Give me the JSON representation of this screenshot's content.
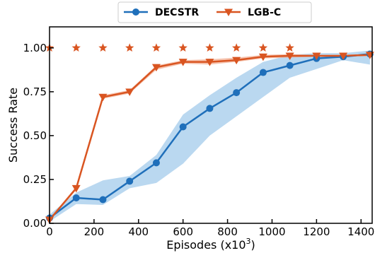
{
  "chart_data": {
    "type": "line",
    "xlabel": "Episodes (x10",
    "xlabel_sup": "3",
    "xlabel_close": ")",
    "ylabel": "Success Rate",
    "xlim": [
      0,
      1450
    ],
    "ylim": [
      0,
      1.12
    ],
    "xticks": [
      0,
      200,
      400,
      600,
      800,
      1000,
      1200,
      1400
    ],
    "yticks": [
      0.0,
      0.25,
      0.5,
      0.75,
      1.0
    ],
    "ytick_labels": [
      "0.00",
      "0.25",
      "0.50",
      "0.75",
      "1.00"
    ],
    "grid": false,
    "legend_position": "top-center",
    "series": [
      {
        "name": "DECSTR",
        "color": "#1f6fba",
        "band_color": "#9cc8ea",
        "marker": "circle",
        "x": [
          0,
          120,
          240,
          360,
          480,
          600,
          720,
          840,
          960,
          1080,
          1200,
          1320,
          1440
        ],
        "y": [
          0.03,
          0.145,
          0.135,
          0.24,
          0.345,
          0.55,
          0.655,
          0.745,
          0.86,
          0.9,
          0.94,
          0.95,
          0.965
        ],
        "upper": [
          0.05,
          0.175,
          0.245,
          0.27,
          0.39,
          0.62,
          0.73,
          0.83,
          0.92,
          0.96,
          0.97,
          0.97,
          0.985
        ],
        "lower": [
          0.01,
          0.11,
          0.105,
          0.2,
          0.23,
          0.34,
          0.5,
          0.61,
          0.72,
          0.83,
          0.88,
          0.93,
          0.905
        ]
      },
      {
        "name": "LGB-C",
        "color": "#d95521",
        "band_color": "#f2a98c",
        "marker": "triangle-down",
        "x": [
          0,
          120,
          240,
          360,
          480,
          600,
          720,
          840,
          960,
          1080,
          1200,
          1320,
          1440
        ],
        "y": [
          0.02,
          0.2,
          0.72,
          0.75,
          0.89,
          0.92,
          0.92,
          0.93,
          0.95,
          0.955,
          0.955,
          0.955,
          0.96
        ],
        "upper": [
          0.025,
          0.21,
          0.73,
          0.76,
          0.9,
          0.93,
          0.935,
          0.945,
          0.96,
          0.965,
          0.96,
          0.96,
          0.965
        ],
        "lower": [
          0.015,
          0.19,
          0.71,
          0.74,
          0.875,
          0.91,
          0.905,
          0.92,
          0.94,
          0.945,
          0.95,
          0.95,
          0.955
        ]
      }
    ],
    "stars": {
      "color": "#d95521",
      "x": [
        0,
        120,
        240,
        360,
        480,
        600,
        720,
        840,
        960,
        1080
      ],
      "y": [
        1.0,
        1.0,
        1.0,
        1.0,
        1.0,
        1.0,
        1.0,
        1.0,
        1.0,
        1.0
      ]
    }
  }
}
